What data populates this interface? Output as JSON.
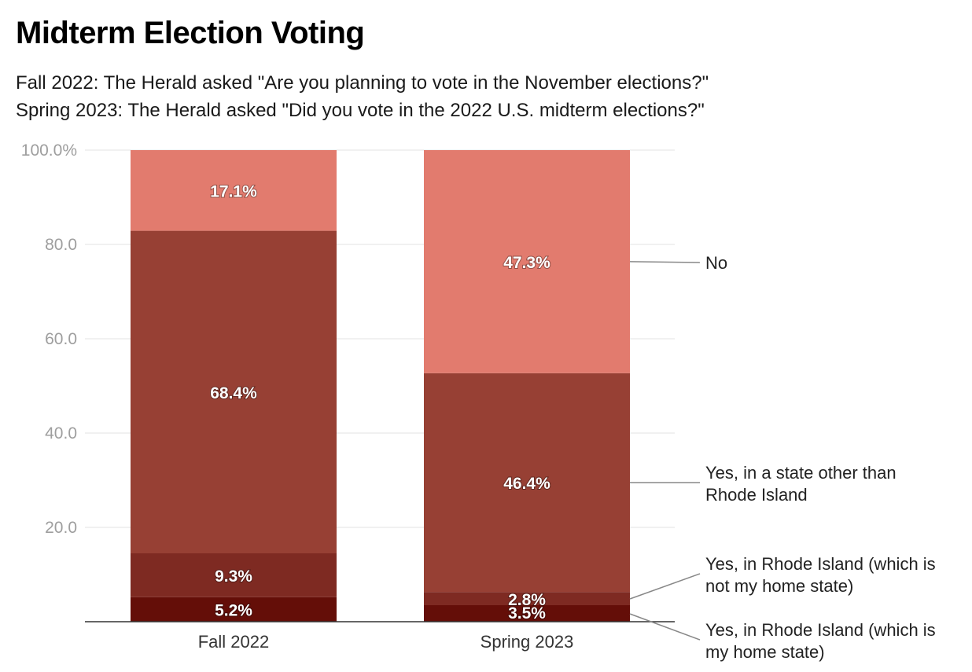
{
  "header": {
    "title": "Midterm Election Voting",
    "subtitle_line1": "Fall 2022: The Herald asked \"Are you planning to vote in the November elections?\"",
    "subtitle_line2": "Spring 2023: The Herald asked \"Did you vote in the 2022 U.S. midterm elections?\""
  },
  "chart_data": {
    "type": "bar",
    "stacked": true,
    "title": "Midterm Election Voting",
    "categories": [
      "Fall 2022",
      "Spring 2023"
    ],
    "series": [
      {
        "name": "Yes, in Rhode Island (which is my home state)",
        "legend_lines": [
          "Yes, in Rhode Island (which is",
          "my home state)"
        ],
        "color": "#640e08",
        "values": [
          5.2,
          3.5
        ],
        "labels": [
          "5.2%",
          "3.5%"
        ]
      },
      {
        "name": "Yes, in Rhode Island (which is not my home state)",
        "legend_lines": [
          "Yes, in Rhode Island (which is",
          "not my home state)"
        ],
        "color": "#7e2a22",
        "values": [
          9.3,
          2.8
        ],
        "labels": [
          "9.3%",
          "2.8%"
        ]
      },
      {
        "name": "Yes, in a state other than Rhode Island",
        "legend_lines": [
          "Yes, in a state other than",
          "Rhode Island"
        ],
        "color": "#974034",
        "values": [
          68.4,
          46.4
        ],
        "labels": [
          "68.4%",
          "46.4%"
        ]
      },
      {
        "name": "No",
        "legend_lines": [
          "No"
        ],
        "color": "#e27b6e",
        "values": [
          17.1,
          47.3
        ],
        "labels": [
          "17.1%",
          "47.3%"
        ]
      }
    ],
    "ylim": [
      0,
      100
    ],
    "yticks": [
      20,
      40,
      60,
      80,
      100
    ],
    "ytick_labels": [
      "20.0",
      "40.0",
      "60.0",
      "80.0",
      "100.0%"
    ],
    "xlabel": "",
    "ylabel": "",
    "grid": true,
    "legend_position": "right"
  }
}
